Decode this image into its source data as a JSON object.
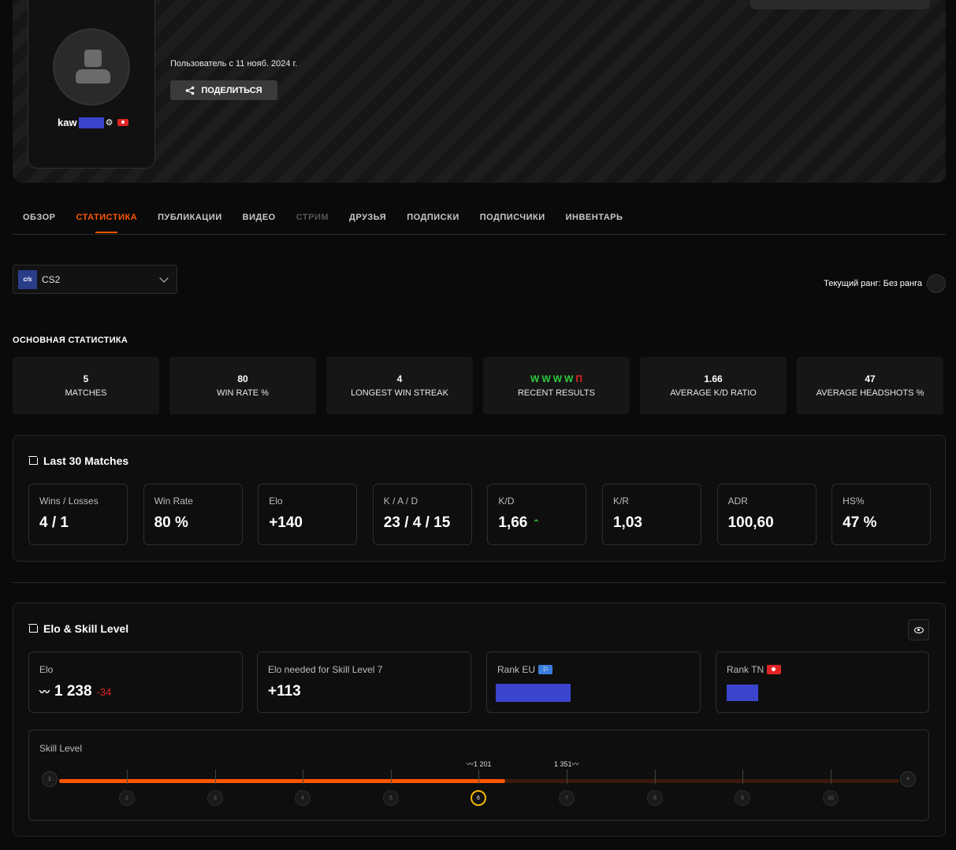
{
  "profile": {
    "nickname": "kaw",
    "member_since": "Пользователь с 11 нояб. 2024 г.",
    "share_label": "ПОДЕЛИТЬСЯ",
    "gear_glyph": "⚙"
  },
  "tabs": [
    {
      "label": "ОБЗОР",
      "state": "normal"
    },
    {
      "label": "СТАТИСТИКА",
      "state": "active"
    },
    {
      "label": "ПУБЛИКАЦИИ",
      "state": "normal"
    },
    {
      "label": "ВИДЕО",
      "state": "normal"
    },
    {
      "label": "СТРИМ",
      "state": "disabled"
    },
    {
      "label": "ДРУЗЬЯ",
      "state": "normal"
    },
    {
      "label": "ПОДПИСКИ",
      "state": "normal"
    },
    {
      "label": "ПОДПИСЧИКИ",
      "state": "normal"
    },
    {
      "label": "ИНВЕНТАРЬ",
      "state": "normal"
    }
  ],
  "game_selector": {
    "logo": "c/s",
    "value": "CS2"
  },
  "current_rank": "Текущий ранг: Без ранга",
  "main_stats": {
    "title": "ОСНОВНАЯ СТАТИСТИКА",
    "matches": {
      "value": "5",
      "label": "MATCHES"
    },
    "win_rate": {
      "value": "80",
      "label": "WIN RATE %"
    },
    "longest_streak": {
      "value": "4",
      "label": "LONGEST WIN STREAK"
    },
    "recent_results": {
      "values": [
        "W",
        "W",
        "W",
        "W",
        "П"
      ],
      "label": "RECENT RESULTS"
    },
    "kd": {
      "value": "1.66",
      "label": "AVERAGE K/D RATIO"
    },
    "headshots": {
      "value": "47",
      "label": "AVERAGE HEADSHOTS %"
    }
  },
  "last30": {
    "title": "Last 30 Matches",
    "cards": [
      {
        "label": "Wins / Losses",
        "value": "4 / 1"
      },
      {
        "label": "Win Rate",
        "value": "80 %"
      },
      {
        "label": "Elo",
        "value": "+140"
      },
      {
        "label": "K / A / D",
        "value": "23 / 4 / 15"
      },
      {
        "label": "K/D",
        "value": "1,66"
      },
      {
        "label": "K/R",
        "value": "1,03"
      },
      {
        "label": "ADR",
        "value": "100,60"
      },
      {
        "label": "HS%",
        "value": "47 %"
      }
    ]
  },
  "elo_section": {
    "title": "Elo & Skill Level",
    "elo": {
      "label": "Elo",
      "value": "1 238",
      "delta": "-34"
    },
    "needed": {
      "label": "Elo needed for Skill Level 7",
      "value": "+113"
    },
    "rank_eu": {
      "label": "Rank EU"
    },
    "rank_tn": {
      "label": "Rank TN"
    },
    "skill": {
      "label": "Skill Level",
      "current_level": 6,
      "levels": [
        "1",
        "2",
        "3",
        "4",
        "5",
        "6",
        "7",
        "8",
        "9",
        "10"
      ],
      "threshold_low": "1 201",
      "threshold_high": "1 351",
      "progress": 0.531
    }
  },
  "colors": {
    "accent": "#ff5500",
    "win": "#2ecc40",
    "loss": "#e02424",
    "level6": "#f2b600",
    "redaction": "#3b44cc"
  }
}
